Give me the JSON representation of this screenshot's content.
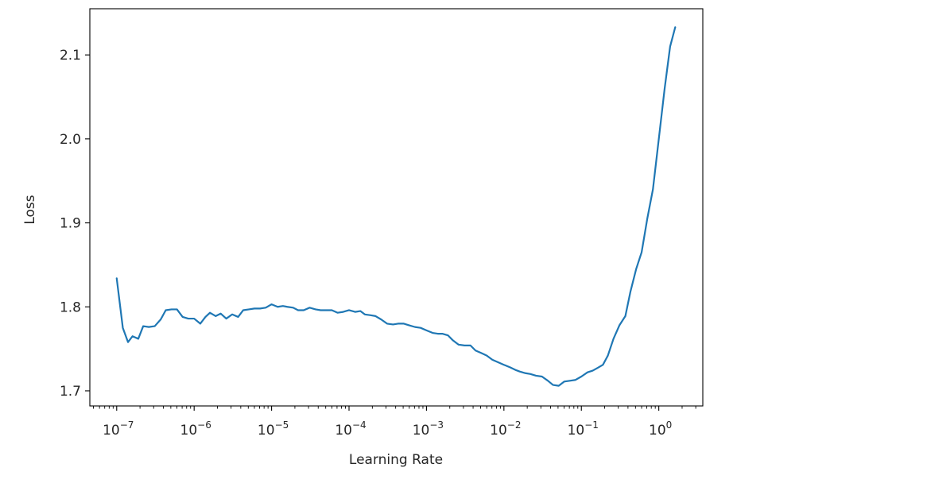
{
  "chart_data": {
    "type": "line",
    "xlabel": "Learning Rate",
    "ylabel": "Loss",
    "xscale": "log",
    "xlim": [
      4.5e-08,
      3.7
    ],
    "ylim": [
      1.682,
      2.155
    ],
    "grid": false,
    "line_color": "#1f77b4",
    "x_ticks": [
      {
        "value": 1e-07,
        "base": "10",
        "exp": "−7"
      },
      {
        "value": 1e-06,
        "base": "10",
        "exp": "−6"
      },
      {
        "value": 1e-05,
        "base": "10",
        "exp": "−5"
      },
      {
        "value": 0.0001,
        "base": "10",
        "exp": "−4"
      },
      {
        "value": 0.001,
        "base": "10",
        "exp": "−3"
      },
      {
        "value": 0.01,
        "base": "10",
        "exp": "−2"
      },
      {
        "value": 0.1,
        "base": "10",
        "exp": "−1"
      },
      {
        "value": 1,
        "base": "10",
        "exp": "0"
      }
    ],
    "y_ticks": [
      {
        "value": 1.7,
        "label": "1.7"
      },
      {
        "value": 1.8,
        "label": "1.8"
      },
      {
        "value": 1.9,
        "label": "1.9"
      },
      {
        "value": 2.0,
        "label": "2.0"
      },
      {
        "value": 2.1,
        "label": "2.1"
      }
    ],
    "series": [
      {
        "x": [
          1e-07,
          1.2e-07,
          1.4e-07,
          1.6e-07,
          1.9e-07,
          2.2e-07,
          2.6e-07,
          3.1e-07,
          3.7e-07,
          4.3e-07,
          5.1e-07,
          6e-07,
          7.1e-07,
          8.4e-07,
          1e-06,
          1.2e-06,
          1.4e-06,
          1.6e-06,
          1.9e-06,
          2.2e-06,
          2.6e-06,
          3.1e-06,
          3.7e-06,
          4.3e-06,
          5.1e-06,
          6e-06,
          7.1e-06,
          8.4e-06,
          1e-05,
          1.2e-05,
          1.4e-05,
          1.6e-05,
          1.9e-05,
          2.2e-05,
          2.6e-05,
          3.1e-05,
          3.7e-05,
          4.3e-05,
          5.1e-05,
          6e-05,
          7.1e-05,
          8.4e-05,
          0.0001,
          0.00012,
          0.00014,
          0.00016,
          0.00019,
          0.00022,
          0.00026,
          0.00031,
          0.00037,
          0.00043,
          0.00051,
          0.0006,
          0.00071,
          0.00084,
          0.001,
          0.0012,
          0.0014,
          0.0016,
          0.0019,
          0.0022,
          0.0026,
          0.0031,
          0.0037,
          0.0043,
          0.0051,
          0.006,
          0.0071,
          0.0084,
          0.01,
          0.012,
          0.014,
          0.016,
          0.019,
          0.022,
          0.026,
          0.031,
          0.037,
          0.043,
          0.051,
          0.06,
          0.071,
          0.084,
          0.1,
          0.12,
          0.14,
          0.16,
          0.19,
          0.22,
          0.26,
          0.31,
          0.37,
          0.43,
          0.51,
          0.6,
          0.71,
          0.84,
          1.0,
          1.19,
          1.4,
          1.63
        ],
        "values": [
          1.834,
          1.775,
          1.758,
          1.765,
          1.762,
          1.777,
          1.776,
          1.777,
          1.785,
          1.796,
          1.797,
          1.797,
          1.788,
          1.786,
          1.786,
          1.78,
          1.788,
          1.793,
          1.789,
          1.792,
          1.786,
          1.791,
          1.788,
          1.796,
          1.797,
          1.798,
          1.798,
          1.799,
          1.803,
          1.8,
          1.801,
          1.8,
          1.799,
          1.796,
          1.796,
          1.799,
          1.797,
          1.796,
          1.796,
          1.796,
          1.793,
          1.794,
          1.796,
          1.794,
          1.795,
          1.791,
          1.79,
          1.789,
          1.785,
          1.78,
          1.779,
          1.78,
          1.78,
          1.778,
          1.776,
          1.775,
          1.772,
          1.769,
          1.768,
          1.768,
          1.766,
          1.76,
          1.755,
          1.754,
          1.754,
          1.748,
          1.745,
          1.742,
          1.737,
          1.734,
          1.731,
          1.728,
          1.725,
          1.723,
          1.721,
          1.72,
          1.718,
          1.717,
          1.712,
          1.707,
          1.706,
          1.711,
          1.712,
          1.713,
          1.717,
          1.722,
          1.724,
          1.727,
          1.731,
          1.742,
          1.762,
          1.778,
          1.789,
          1.818,
          1.845,
          1.865,
          1.905,
          1.94,
          2.0,
          2.06,
          2.11,
          2.133
        ]
      }
    ]
  }
}
